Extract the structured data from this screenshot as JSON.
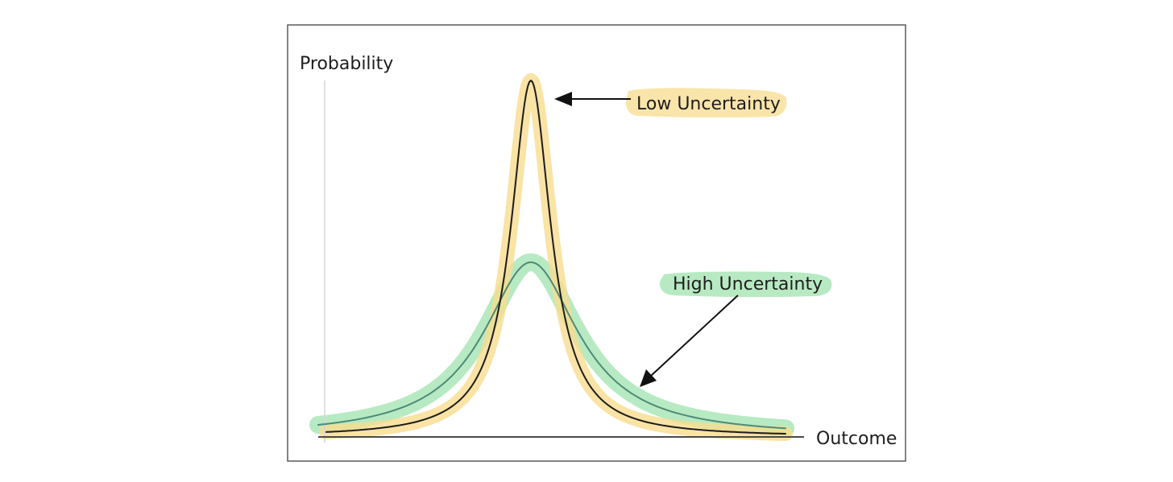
{
  "labels": {
    "y_axis": "Probability",
    "x_axis": "Outcome",
    "low": "Low Uncertainty",
    "high": "High Uncertainty"
  },
  "colors": {
    "low_highlight": "#f7dc8e",
    "high_highlight": "#9fe3ad",
    "low_curve": "#1c1c1c",
    "high_curve": "#4e8a78"
  },
  "chart_data": {
    "type": "line",
    "series": [
      {
        "curve": "low",
        "peak_height": 1.0,
        "spread": "narrow"
      },
      {
        "curve": "high",
        "peak_height": 0.5,
        "spread": "wide"
      }
    ]
  }
}
